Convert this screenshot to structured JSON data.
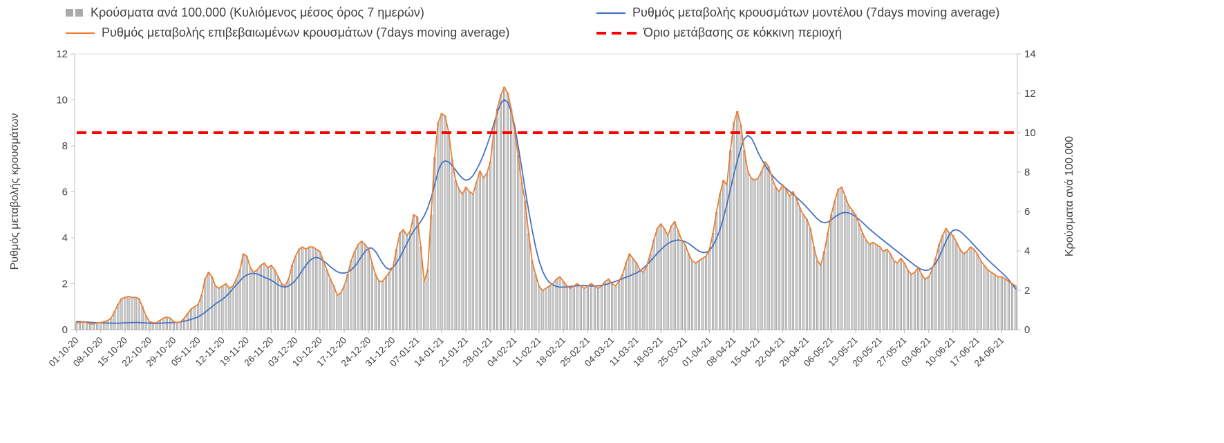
{
  "legend": {
    "bars": "Κρούσματα ανά 100.000 (Κυλιόμενος μέσος όρος 7 ημερών)",
    "model": "Ρυθμός μεταβολής κρουσμάτων μοντέλου (7days moving average)",
    "confirmed": "Ρυθμός μεταβολής επιβεβαιωμένων κρουσμάτων (7days moving average)",
    "threshold": "Όριο μετάβασης σε κόκκινη περιοχή"
  },
  "colors": {
    "bars_fill": "#cfcfcf",
    "bars_stroke": "#8c8c8c",
    "model_line": "#4472c4",
    "confirmed_line": "#ed7d31",
    "threshold_line": "#ff0000",
    "axis_line": "#bfbfbf",
    "text": "#404040"
  },
  "chart_data": {
    "type": "combo-bar-line",
    "x_frequency": "daily",
    "x_start_date": "01-10-20",
    "x_tick_interval_days": 7,
    "x_tick_labels": [
      "01-10-20",
      "08-10-20",
      "15-10-20",
      "22-10-20",
      "29-10-20",
      "05-11-20",
      "12-11-20",
      "19-11-20",
      "26-11-20",
      "03-12-20",
      "10-12-20",
      "17-12-20",
      "24-12-20",
      "31-12-20",
      "07-01-21",
      "14-01-21",
      "21-01-21",
      "28-01-21",
      "04-02-21",
      "11-02-21",
      "18-02-21",
      "25-02-21",
      "04-03-21",
      "11-03-21",
      "18-03-21",
      "25-03-21",
      "01-04-21",
      "08-04-21",
      "15-04-21",
      "22-04-21",
      "29-04-21",
      "06-05-21",
      "13-05-21",
      "20-05-21",
      "27-05-21",
      "03-06-21",
      "10-06-21",
      "17-06-21",
      "24-06-21"
    ],
    "left_axis": {
      "title": "Ρυθμός μεταβολής κρουσμάτων",
      "range": [
        0,
        12
      ],
      "ticks": [
        0,
        2,
        4,
        6,
        8,
        10,
        12
      ]
    },
    "right_axis": {
      "title": "Κρούσματα ανά 100.000",
      "range": [
        0,
        14
      ],
      "ticks": [
        0,
        2,
        4,
        6,
        8,
        10,
        12,
        14
      ]
    },
    "threshold": {
      "left_value": 8.57,
      "right_value": 10,
      "color": "#ff0000"
    },
    "series": [
      {
        "name": "Κρούσματα ανά 100.000 (Κυλιόμενος μέσος όρος 7 ημερών)",
        "type": "bar",
        "axis": "right",
        "fill": "#cfcfcf",
        "stroke": "#8c8c8c",
        "values": [
          0.35,
          0.35,
          0.41,
          0.35,
          0.29,
          0.29,
          0.35,
          0.35,
          0.41,
          0.47,
          0.58,
          0.93,
          1.28,
          1.58,
          1.63,
          1.69,
          1.63,
          1.63,
          1.58,
          1.17,
          0.7,
          0.41,
          0.35,
          0.35,
          0.47,
          0.58,
          0.64,
          0.58,
          0.41,
          0.35,
          0.41,
          0.58,
          0.82,
          1.05,
          1.17,
          1.28,
          1.75,
          2.57,
          2.92,
          2.68,
          2.22,
          2.1,
          2.22,
          2.33,
          2.1,
          2.22,
          2.57,
          3.03,
          3.85,
          3.73,
          3.15,
          2.92,
          3.03,
          3.27,
          3.38,
          3.15,
          3.27,
          3.03,
          2.68,
          2.33,
          2.22,
          2.57,
          3.27,
          3.73,
          4.08,
          4.2,
          4.08,
          4.2,
          4.2,
          4.08,
          3.97,
          3.5,
          3.03,
          2.57,
          2.22,
          1.75,
          1.87,
          2.22,
          2.8,
          3.5,
          3.97,
          4.32,
          4.49,
          4.32,
          4.08,
          3.38,
          2.8,
          2.45,
          2.45,
          2.68,
          2.92,
          3.15,
          4.08,
          4.9,
          5.08,
          4.78,
          5.02,
          5.83,
          5.72,
          4.2,
          2.45,
          3.03,
          5.83,
          8.75,
          10.5,
          10.97,
          10.85,
          10.03,
          8.63,
          7.58,
          7.12,
          6.88,
          7.23,
          7.0,
          6.88,
          7.47,
          8.05,
          7.7,
          7.93,
          8.52,
          10.03,
          11.2,
          11.9,
          12.31,
          12.02,
          11.2,
          10.03,
          8.87,
          7.47,
          6.53,
          4.9,
          3.5,
          2.8,
          2.22,
          1.98,
          2.1,
          2.22,
          2.33,
          2.57,
          2.68,
          2.45,
          2.22,
          2.1,
          2.22,
          2.33,
          2.22,
          2.1,
          2.22,
          2.33,
          2.22,
          2.1,
          2.22,
          2.45,
          2.57,
          2.33,
          2.22,
          2.45,
          2.8,
          3.38,
          3.85,
          3.62,
          3.38,
          3.03,
          2.92,
          3.27,
          3.85,
          4.55,
          5.13,
          5.37,
          5.13,
          4.78,
          5.25,
          5.48,
          5.02,
          4.55,
          4.32,
          3.85,
          3.5,
          3.38,
          3.5,
          3.62,
          3.73,
          4.08,
          4.9,
          5.95,
          6.88,
          7.58,
          7.35,
          9.1,
          10.5,
          11.08,
          10.38,
          9.1,
          8.05,
          7.7,
          7.58,
          7.7,
          8.05,
          8.52,
          8.28,
          7.7,
          7.23,
          7.0,
          7.35,
          7.12,
          6.77,
          7.0,
          6.65,
          6.18,
          5.83,
          5.6,
          5.13,
          4.2,
          3.5,
          3.27,
          3.97,
          4.9,
          5.83,
          6.53,
          7.12,
          7.23,
          6.77,
          6.3,
          6.07,
          5.83,
          5.37,
          4.9,
          4.55,
          4.32,
          4.43,
          4.32,
          4.2,
          3.97,
          4.08,
          3.85,
          3.5,
          3.38,
          3.62,
          3.38,
          3.03,
          2.8,
          2.92,
          3.15,
          2.8,
          2.57,
          2.68,
          3.03,
          3.62,
          4.32,
          4.78,
          5.13,
          4.9,
          4.78,
          4.43,
          4.08,
          3.85,
          3.97,
          4.2,
          4.08,
          3.85,
          3.5,
          3.27,
          3.03,
          2.92,
          2.8,
          2.68,
          2.68,
          2.57,
          2.45,
          2.33,
          2.22
        ]
      },
      {
        "name": "Ρυθμός μεταβολής κρουσμάτων μοντέλου (7days moving average)",
        "type": "line",
        "axis": "left",
        "color": "#4472c4",
        "values": [
          0.35,
          0.35,
          0.34,
          0.33,
          0.32,
          0.31,
          0.3,
          0.3,
          0.29,
          0.29,
          0.28,
          0.28,
          0.28,
          0.29,
          0.3,
          0.3,
          0.31,
          0.31,
          0.31,
          0.3,
          0.29,
          0.28,
          0.27,
          0.27,
          0.28,
          0.29,
          0.3,
          0.3,
          0.31,
          0.32,
          0.34,
          0.37,
          0.4,
          0.45,
          0.5,
          0.55,
          0.65,
          0.75,
          0.88,
          1.0,
          1.12,
          1.22,
          1.32,
          1.45,
          1.6,
          1.78,
          1.95,
          2.12,
          2.28,
          2.38,
          2.44,
          2.45,
          2.42,
          2.36,
          2.28,
          2.22,
          2.15,
          2.05,
          1.95,
          1.88,
          1.85,
          1.9,
          2.0,
          2.15,
          2.35,
          2.6,
          2.8,
          3.0,
          3.1,
          3.15,
          3.1,
          3.0,
          2.88,
          2.74,
          2.62,
          2.52,
          2.47,
          2.46,
          2.5,
          2.6,
          2.75,
          2.95,
          3.2,
          3.4,
          3.55,
          3.55,
          3.4,
          3.15,
          2.9,
          2.7,
          2.62,
          2.7,
          2.9,
          3.15,
          3.45,
          3.75,
          4.05,
          4.3,
          4.5,
          4.7,
          4.95,
          5.3,
          5.75,
          6.3,
          6.9,
          7.25,
          7.35,
          7.3,
          7.15,
          6.95,
          6.75,
          6.58,
          6.5,
          6.55,
          6.7,
          6.95,
          7.25,
          7.6,
          8.0,
          8.45,
          8.95,
          9.45,
          9.85,
          10.0,
          9.9,
          9.5,
          8.85,
          8.0,
          7.05,
          6.1,
          5.2,
          4.35,
          3.6,
          3.0,
          2.55,
          2.25,
          2.05,
          1.95,
          1.88,
          1.85,
          1.85,
          1.86,
          1.88,
          1.9,
          1.91,
          1.92,
          1.92,
          1.91,
          1.9,
          1.9,
          1.91,
          1.93,
          1.96,
          2.0,
          2.05,
          2.1,
          2.16,
          2.22,
          2.28,
          2.34,
          2.4,
          2.47,
          2.56,
          2.68,
          2.82,
          2.98,
          3.15,
          3.32,
          3.48,
          3.62,
          3.74,
          3.83,
          3.88,
          3.9,
          3.88,
          3.83,
          3.75,
          3.64,
          3.52,
          3.42,
          3.36,
          3.36,
          3.45,
          3.65,
          3.95,
          4.35,
          4.85,
          5.45,
          6.1,
          6.75,
          7.35,
          7.9,
          8.3,
          8.45,
          8.35,
          8.05,
          7.7,
          7.4,
          7.15,
          6.92,
          6.72,
          6.55,
          6.4,
          6.28,
          6.15,
          6.02,
          5.9,
          5.76,
          5.62,
          5.48,
          5.32,
          5.15,
          4.98,
          4.82,
          4.7,
          4.65,
          4.68,
          4.78,
          4.9,
          5.0,
          5.08,
          5.1,
          5.08,
          5.02,
          4.92,
          4.8,
          4.66,
          4.52,
          4.38,
          4.25,
          4.12,
          4.0,
          3.88,
          3.76,
          3.64,
          3.52,
          3.4,
          3.28,
          3.16,
          3.04,
          2.92,
          2.8,
          2.7,
          2.62,
          2.58,
          2.6,
          2.7,
          2.88,
          3.15,
          3.5,
          3.85,
          4.15,
          4.32,
          4.35,
          4.28,
          4.15,
          4.0,
          3.85,
          3.68,
          3.52,
          3.36,
          3.2,
          3.05,
          2.9,
          2.76,
          2.62,
          2.48,
          2.33,
          2.17,
          1.98,
          1.78
        ]
      },
      {
        "name": "Ρυθμός μεταβολής επιβεβαιωμένων κρουσμάτων (7days moving average)",
        "type": "line",
        "axis": "left",
        "color": "#ed7d31",
        "values": [
          0.3,
          0.3,
          0.35,
          0.3,
          0.25,
          0.25,
          0.3,
          0.3,
          0.35,
          0.4,
          0.5,
          0.8,
          1.1,
          1.35,
          1.4,
          1.45,
          1.4,
          1.4,
          1.35,
          1.0,
          0.6,
          0.35,
          0.3,
          0.3,
          0.4,
          0.5,
          0.55,
          0.5,
          0.35,
          0.3,
          0.35,
          0.5,
          0.7,
          0.9,
          1.0,
          1.1,
          1.5,
          2.2,
          2.5,
          2.3,
          1.9,
          1.8,
          1.9,
          2.0,
          1.8,
          1.9,
          2.2,
          2.6,
          3.3,
          3.2,
          2.7,
          2.5,
          2.6,
          2.8,
          2.9,
          2.7,
          2.8,
          2.6,
          2.3,
          2.0,
          1.9,
          2.2,
          2.8,
          3.2,
          3.5,
          3.6,
          3.5,
          3.6,
          3.6,
          3.5,
          3.4,
          3.0,
          2.6,
          2.2,
          1.9,
          1.5,
          1.6,
          1.9,
          2.4,
          3.0,
          3.4,
          3.7,
          3.85,
          3.7,
          3.5,
          2.9,
          2.4,
          2.1,
          2.1,
          2.3,
          2.5,
          2.7,
          3.5,
          4.2,
          4.35,
          4.1,
          4.3,
          5.0,
          4.9,
          3.6,
          2.1,
          2.6,
          5.0,
          7.5,
          9.0,
          9.4,
          9.3,
          8.6,
          7.4,
          6.5,
          6.1,
          5.9,
          6.2,
          6.0,
          5.9,
          6.4,
          6.9,
          6.6,
          6.8,
          7.3,
          8.6,
          9.6,
          10.2,
          10.55,
          10.3,
          9.6,
          8.6,
          7.6,
          6.4,
          5.6,
          4.2,
          3.0,
          2.4,
          1.9,
          1.7,
          1.8,
          1.9,
          2.0,
          2.2,
          2.3,
          2.1,
          1.9,
          1.8,
          1.9,
          2.0,
          1.9,
          1.8,
          1.9,
          2.0,
          1.9,
          1.8,
          1.9,
          2.1,
          2.2,
          2.0,
          1.9,
          2.1,
          2.4,
          2.9,
          3.3,
          3.1,
          2.9,
          2.6,
          2.5,
          2.8,
          3.3,
          3.9,
          4.4,
          4.6,
          4.4,
          4.1,
          4.5,
          4.7,
          4.3,
          3.9,
          3.7,
          3.3,
          3.0,
          2.9,
          3.0,
          3.1,
          3.2,
          3.5,
          4.2,
          5.1,
          5.9,
          6.5,
          6.3,
          7.8,
          9.0,
          9.5,
          8.9,
          7.8,
          6.9,
          6.6,
          6.5,
          6.6,
          6.9,
          7.3,
          7.1,
          6.6,
          6.2,
          6.0,
          6.3,
          6.1,
          5.8,
          6.0,
          5.7,
          5.3,
          5.0,
          4.8,
          4.4,
          3.6,
          3.0,
          2.8,
          3.4,
          4.2,
          5.0,
          5.6,
          6.1,
          6.2,
          5.8,
          5.4,
          5.2,
          5.0,
          4.6,
          4.2,
          3.9,
          3.7,
          3.8,
          3.7,
          3.6,
          3.4,
          3.5,
          3.3,
          3.0,
          2.9,
          3.1,
          2.9,
          2.6,
          2.4,
          2.5,
          2.7,
          2.4,
          2.2,
          2.3,
          2.6,
          3.1,
          3.7,
          4.1,
          4.4,
          4.2,
          4.1,
          3.8,
          3.5,
          3.3,
          3.4,
          3.6,
          3.5,
          3.3,
          3.0,
          2.8,
          2.6,
          2.5,
          2.4,
          2.3,
          2.3,
          2.2,
          2.1,
          2.0,
          1.9
        ]
      }
    ]
  }
}
